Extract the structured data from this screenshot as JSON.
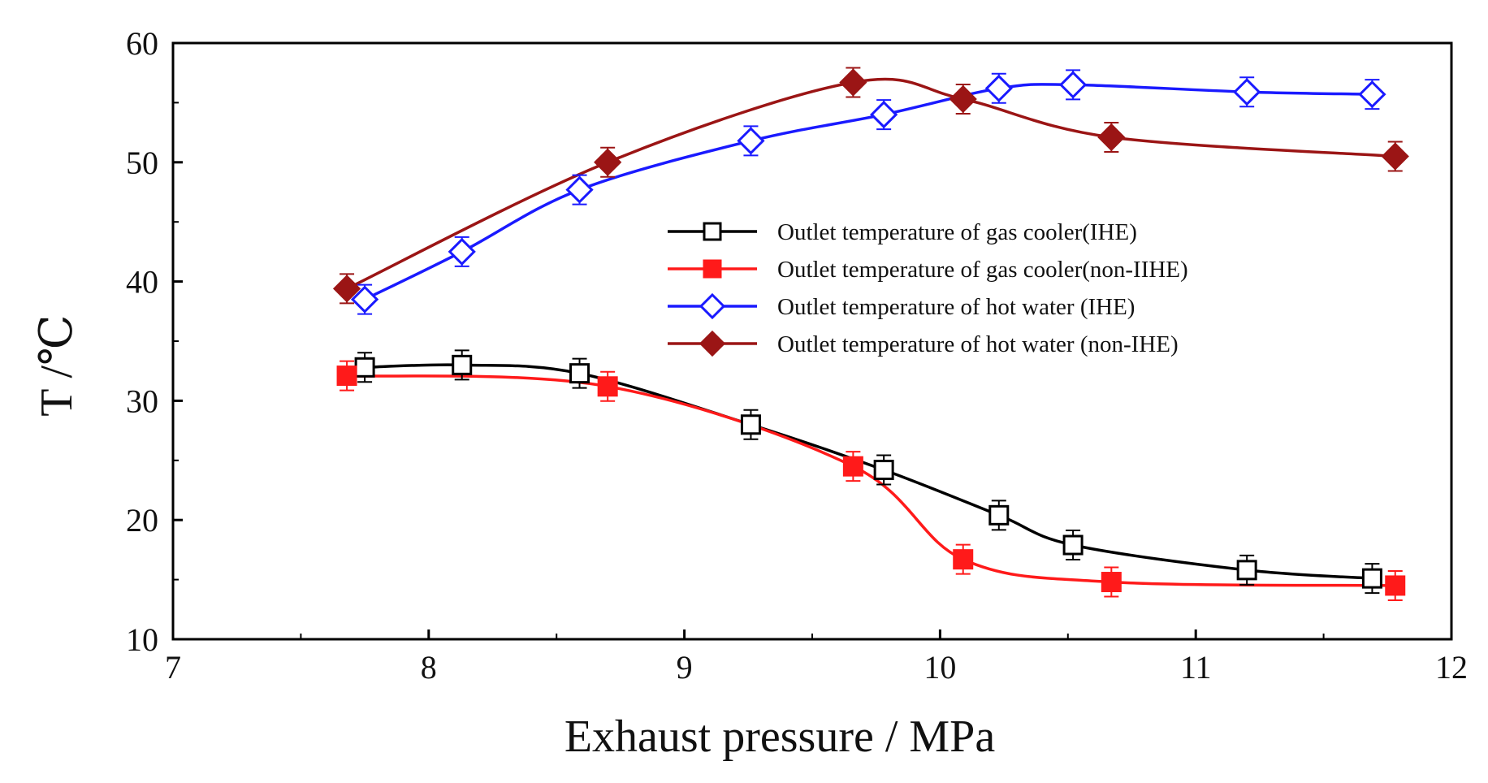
{
  "chart_data": {
    "type": "line",
    "title": "",
    "xlabel": "Exhaust pressure / MPa",
    "ylabel": "T /℃",
    "xlim": [
      7,
      12
    ],
    "ylim": [
      10,
      60
    ],
    "xticks": [
      7,
      8,
      9,
      10,
      11,
      12
    ],
    "yticks": [
      10,
      20,
      30,
      40,
      50,
      60
    ],
    "grid": false,
    "legend_position": "center-right",
    "series": [
      {
        "name": "Outlet temperature  of gas cooler(IHE)",
        "color": "#000000",
        "marker": "open-square",
        "x": [
          7.75,
          8.13,
          8.59,
          9.26,
          9.78,
          10.23,
          10.52,
          11.2,
          11.69
        ],
        "y": [
          32.8,
          33.0,
          32.3,
          28.0,
          24.2,
          20.4,
          17.9,
          15.8,
          15.1
        ]
      },
      {
        "name": "Outlet temperature of gas cooler(non-IIHE)",
        "color": "#ff1a1a",
        "marker": "filled-square",
        "x": [
          7.68,
          8.7,
          9.66,
          10.09,
          10.67,
          11.78
        ],
        "y": [
          32.1,
          31.2,
          24.5,
          16.7,
          14.8,
          14.5
        ]
      },
      {
        "name": "Outlet temperature  of hot water  (IHE)",
        "color": "#1a1aff",
        "marker": "open-diamond",
        "x": [
          7.75,
          8.13,
          8.59,
          9.26,
          9.78,
          10.23,
          10.52,
          11.2,
          11.69
        ],
        "y": [
          38.5,
          42.5,
          47.7,
          51.8,
          54.0,
          56.2,
          56.5,
          55.9,
          55.7
        ]
      },
      {
        "name": "Outlet temperature of hot water (non-IHE)",
        "color": "#9b1515",
        "marker": "filled-diamond",
        "x": [
          7.68,
          8.7,
          9.66,
          10.09,
          10.67,
          11.78
        ],
        "y": [
          39.4,
          50.0,
          56.7,
          55.3,
          52.1,
          50.5
        ]
      }
    ]
  }
}
